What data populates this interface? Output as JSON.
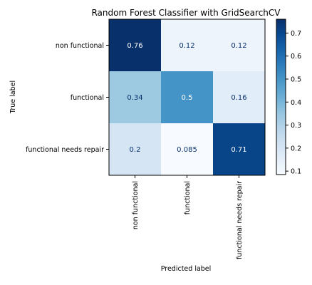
{
  "chart_data": {
    "type": "heatmap",
    "title": "Random Forest Classifier with GridSearchCV",
    "xlabel": "Predicted label",
    "ylabel": "True label",
    "row_labels": [
      "non functional",
      "functional",
      "functional needs repair"
    ],
    "col_labels": [
      "non functional",
      "functional",
      "functional needs repair"
    ],
    "values": [
      [
        0.76,
        0.12,
        0.12
      ],
      [
        0.34,
        0.5,
        0.16
      ],
      [
        0.2,
        0.085,
        0.71
      ]
    ],
    "value_labels": [
      [
        "0.76",
        "0.12",
        "0.12"
      ],
      [
        "0.34",
        "0.5",
        "0.16"
      ],
      [
        "0.2",
        "0.085",
        "0.71"
      ]
    ],
    "colormap": "Blues",
    "color_range": [
      0.085,
      0.76
    ],
    "colorbar_ticks": [
      0.1,
      0.2,
      0.3,
      0.4,
      0.5,
      0.6,
      0.7
    ],
    "colorbar_tick_labels": [
      "0.1",
      "0.2",
      "0.3",
      "0.4",
      "0.5",
      "0.6",
      "0.7"
    ],
    "grid": false,
    "colors": {
      "low": "#f7fbff",
      "high": "#08306b",
      "text_dark": "#08306b",
      "text_light": "#ffffff"
    }
  }
}
